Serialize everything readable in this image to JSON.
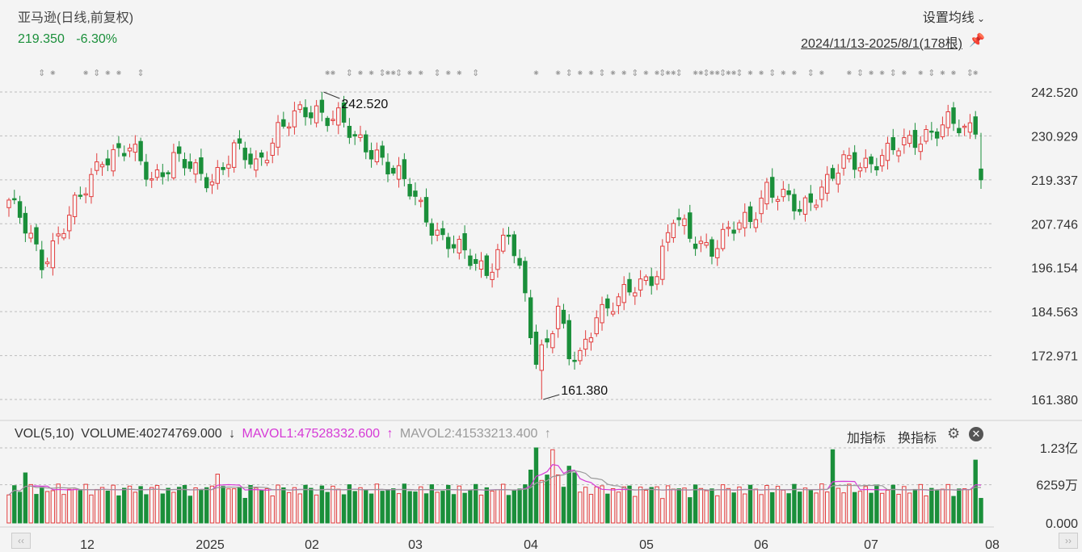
{
  "header": {
    "title": "亚马逊(日线,前复权)",
    "last_price": "219.350",
    "change_pct": "-6.30%",
    "ma_setting_label": "设置均线",
    "date_range": "2024/11/13-2025/8/1(178根)"
  },
  "volume_panel": {
    "indicator": "VOL(5,10)",
    "volume_label": "VOLUME:40274769.000",
    "volume_arrow": "↓",
    "mavol1_label": "MAVOL1:47528332.600",
    "mavol1_arrow": "↑",
    "mavol2_label": "MAVOL2:41533213.400",
    "mavol2_arrow": "↑",
    "add_indicator": "加指标",
    "switch_indicator": "换指标"
  },
  "colors": {
    "up": "#e23c3c",
    "down": "#1a8f3a",
    "mavol1": "#d63ad6",
    "mavol2": "#9a9a9a",
    "grid": "#bdbdbd"
  },
  "icons": {
    "dropdown": "chevron-down-icon",
    "pin": "pin-icon",
    "settings": "gear-icon",
    "close": "close-icon"
  },
  "chart_data": {
    "type": "candlestick",
    "price_axis": {
      "ylim": [
        161.38,
        242.52
      ],
      "ticks": [
        242.52,
        230.929,
        219.337,
        207.746,
        196.154,
        184.563,
        172.971,
        161.38
      ],
      "tick_labels": [
        "242.520",
        "230.929",
        "219.337",
        "207.746",
        "196.154",
        "184.563",
        "172.971",
        "161.380"
      ]
    },
    "annotations": [
      {
        "label": "242.520",
        "value": 242.52,
        "type": "high"
      },
      {
        "label": "161.380",
        "value": 161.38,
        "type": "low"
      }
    ],
    "x_axis_labels": [
      "12",
      "2025",
      "02",
      "03",
      "04",
      "05",
      "06",
      "07",
      "08"
    ],
    "volume_axis": {
      "tick_labels": [
        "1.23亿",
        "6259万",
        "0.000"
      ]
    },
    "close_anchors": [
      {
        "i": 0,
        "c": 214
      },
      {
        "i": 3,
        "c": 206
      },
      {
        "i": 6,
        "c": 198
      },
      {
        "i": 9,
        "c": 205
      },
      {
        "i": 13,
        "c": 214
      },
      {
        "i": 17,
        "c": 226
      },
      {
        "i": 22,
        "c": 227
      },
      {
        "i": 26,
        "c": 220
      },
      {
        "i": 30,
        "c": 225
      },
      {
        "i": 34,
        "c": 221
      },
      {
        "i": 37,
        "c": 220
      },
      {
        "i": 41,
        "c": 227
      },
      {
        "i": 45,
        "c": 223
      },
      {
        "i": 49,
        "c": 233
      },
      {
        "i": 53,
        "c": 236
      },
      {
        "i": 56,
        "c": 238
      },
      {
        "i": 60,
        "c": 236
      },
      {
        "i": 63,
        "c": 229
      },
      {
        "i": 67,
        "c": 227
      },
      {
        "i": 71,
        "c": 220
      },
      {
        "i": 75,
        "c": 212
      },
      {
        "i": 79,
        "c": 204
      },
      {
        "i": 83,
        "c": 199
      },
      {
        "i": 87,
        "c": 196
      },
      {
        "i": 91,
        "c": 205
      },
      {
        "i": 94,
        "c": 188
      },
      {
        "i": 96,
        "c": 172
      },
      {
        "i": 98,
        "c": 178
      },
      {
        "i": 100,
        "c": 185
      },
      {
        "i": 102,
        "c": 172
      },
      {
        "i": 104,
        "c": 172
      },
      {
        "i": 107,
        "c": 185
      },
      {
        "i": 111,
        "c": 187
      },
      {
        "i": 115,
        "c": 192
      },
      {
        "i": 118,
        "c": 196
      },
      {
        "i": 121,
        "c": 209
      },
      {
        "i": 124,
        "c": 204
      },
      {
        "i": 128,
        "c": 202
      },
      {
        "i": 131,
        "c": 205
      },
      {
        "i": 135,
        "c": 209
      },
      {
        "i": 138,
        "c": 218
      },
      {
        "i": 141,
        "c": 214
      },
      {
        "i": 144,
        "c": 211
      },
      {
        "i": 148,
        "c": 218
      },
      {
        "i": 152,
        "c": 223
      },
      {
        "i": 156,
        "c": 224
      },
      {
        "i": 159,
        "c": 226
      },
      {
        "i": 163,
        "c": 228
      },
      {
        "i": 167,
        "c": 232
      },
      {
        "i": 171,
        "c": 234
      },
      {
        "i": 174,
        "c": 232
      },
      {
        "i": 176,
        "c": 234
      },
      {
        "i": 177,
        "c": 219.35
      }
    ]
  }
}
